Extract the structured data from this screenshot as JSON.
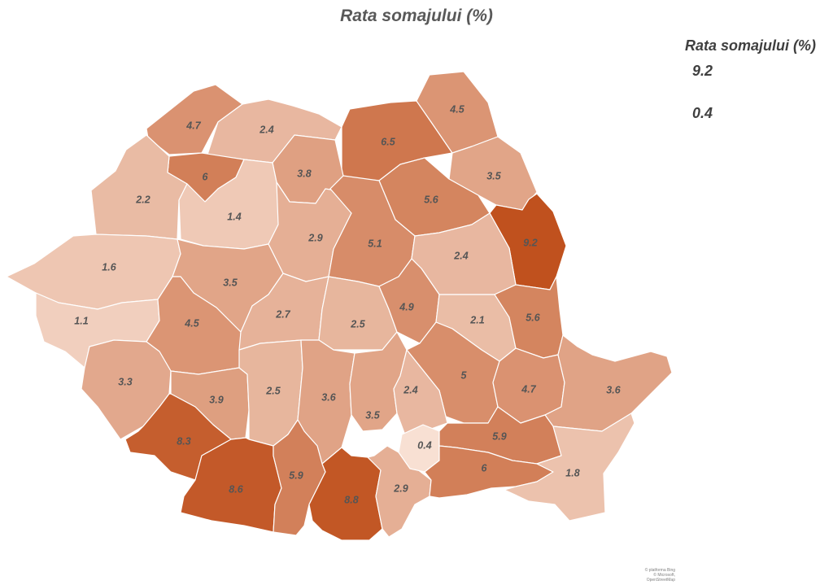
{
  "title": "Rata somajului (%)",
  "legend": {
    "title": "Rata somajului (%)",
    "max": "9.2",
    "min": "0.4",
    "color_min": "#f8e0d3",
    "color_max": "#c0511e"
  },
  "attribution": {
    "line1": "© platforma Bing",
    "line2": "© Microsoft, OpenStreetMap"
  },
  "map_data": {
    "counties": [
      {
        "id": "SM",
        "value": 4.7,
        "label": "4.7"
      },
      {
        "id": "MM",
        "value": 2.4,
        "label": "2.4"
      },
      {
        "id": "SV",
        "value": 6.5,
        "label": "6.5"
      },
      {
        "id": "BT",
        "value": 4.5,
        "label": "4.5"
      },
      {
        "id": "SJ",
        "value": 6,
        "label": "6"
      },
      {
        "id": "BN",
        "value": 3.8,
        "label": "3.8"
      },
      {
        "id": "IS",
        "value": 3.5,
        "label": "3.5"
      },
      {
        "id": "BH",
        "value": 2.2,
        "label": "2.2"
      },
      {
        "id": "CJ",
        "value": 1.4,
        "label": "1.4"
      },
      {
        "id": "NT",
        "value": 5.6,
        "label": "5.6"
      },
      {
        "id": "VS",
        "value": 9.2,
        "label": "9.2"
      },
      {
        "id": "MS",
        "value": 2.9,
        "label": "2.9"
      },
      {
        "id": "HR",
        "value": 5.1,
        "label": "5.1"
      },
      {
        "id": "BC",
        "value": 2.4,
        "label": "2.4"
      },
      {
        "id": "AR",
        "value": 1.6,
        "label": "1.6"
      },
      {
        "id": "AB",
        "value": 3.5,
        "label": "3.5"
      },
      {
        "id": "TM",
        "value": 1.1,
        "label": "1.1"
      },
      {
        "id": "HD",
        "value": 4.5,
        "label": "4.5"
      },
      {
        "id": "SB",
        "value": 2.7,
        "label": "2.7"
      },
      {
        "id": "BV",
        "value": 2.5,
        "label": "2.5"
      },
      {
        "id": "CV",
        "value": 4.9,
        "label": "4.9"
      },
      {
        "id": "VN",
        "value": 2.1,
        "label": "2.1"
      },
      {
        "id": "GL",
        "value": 5.6,
        "label": "5.6"
      },
      {
        "id": "CS",
        "value": 3.3,
        "label": "3.3"
      },
      {
        "id": "GJ",
        "value": 3.9,
        "label": "3.9"
      },
      {
        "id": "VL",
        "value": 2.5,
        "label": "2.5"
      },
      {
        "id": "AG",
        "value": 3.6,
        "label": "3.6"
      },
      {
        "id": "PH",
        "value": 3.5,
        "label": "3.5"
      },
      {
        "id": "BZ",
        "value": 5,
        "label": "5"
      },
      {
        "id": "BR",
        "value": 4.7,
        "label": "4.7"
      },
      {
        "id": "TL",
        "value": 3.6,
        "label": "3.6"
      },
      {
        "id": "DB",
        "value": 2.4,
        "label": "2.4"
      },
      {
        "id": "MH",
        "value": 8.3,
        "label": "8.3"
      },
      {
        "id": "DJ",
        "value": 8.6,
        "label": "8.6"
      },
      {
        "id": "OT",
        "value": 5.9,
        "label": "5.9"
      },
      {
        "id": "TR",
        "value": 8.8,
        "label": "8.8"
      },
      {
        "id": "GR",
        "value": 2.9,
        "label": "2.9"
      },
      {
        "id": "IF",
        "value": 0.4,
        "label": "0.4"
      },
      {
        "id": "IL",
        "value": 5.9,
        "label": "5.9"
      },
      {
        "id": "CL",
        "value": 6,
        "label": "6"
      },
      {
        "id": "CT",
        "value": 1.8,
        "label": "1.8"
      }
    ]
  }
}
